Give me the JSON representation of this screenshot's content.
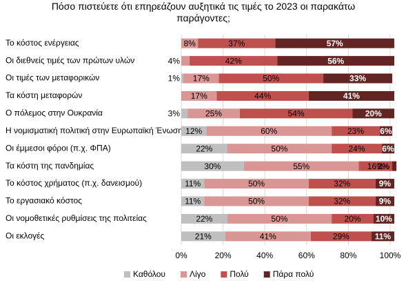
{
  "chart_data": {
    "type": "stacked-bar-horizontal",
    "title": "Πόσο πιστεύετε ότι επηρεάζουν αυξητικά τις τιμές το 2023 οι παρακάτω παράγοντες;",
    "categories": [
      "Το κόστος ενέργειας",
      "Οι διεθνείς τιμές των πρώτων υλών",
      "Οι τιμές των μεταφορικών",
      "Τα κόστη μεταφορών",
      "Ο πόλεμος στην Ουκρανία",
      "Η νομισματική πολιτική στην Ευρωπαϊκή Ένωση",
      "Οι έμμεσοι φόροι (π.χ. ΦΠΑ)",
      "Τα κόστη της πανδημίας",
      "Το κόστος χρήματος (π.χ. δανεισμού)",
      "Το εργασιακό κόστος",
      "Οι νομοθετικές ρυθμίσεις της πολιτείας",
      "Οι εκλογές"
    ],
    "series": [
      {
        "name": "Καθόλου",
        "color": "#bfbfbf",
        "values": [
          null,
          null,
          1,
          null,
          3,
          12,
          22,
          30,
          11,
          11,
          22,
          21
        ],
        "value_labels": [
          null,
          null,
          "1%",
          null,
          "3%",
          "12%",
          "22%",
          "30%",
          "11%",
          "11%",
          "22%",
          "21%"
        ]
      },
      {
        "name": "Λίγο",
        "color": "#d99694",
        "values": [
          8,
          4,
          17,
          17,
          25,
          60,
          50,
          55,
          50,
          50,
          50,
          41
        ],
        "value_labels": [
          "8%",
          "4%",
          "17%",
          "17%",
          "25%",
          "60%",
          "50%",
          "55%",
          "50%",
          "50%",
          "50%",
          "41%"
        ]
      },
      {
        "name": "Πολύ",
        "color": "#c0504d",
        "values": [
          37,
          42,
          50,
          44,
          54,
          23,
          24,
          16,
          32,
          32,
          20,
          29
        ],
        "value_labels": [
          "37%",
          "42%",
          "50%",
          "44%",
          "54%",
          "23%",
          "24%",
          "16%",
          "32%",
          "32%",
          "20%",
          "29%"
        ]
      },
      {
        "name": "Πάρα πολύ",
        "color": "#632523",
        "values": [
          57,
          56,
          33,
          41,
          20,
          6,
          6,
          2,
          9,
          9,
          10,
          11
        ],
        "value_labels": [
          "57%",
          "56%",
          "33%",
          "41%",
          "20%",
          "6%",
          "6%",
          "2%",
          "9%",
          "9%",
          "10%",
          "11%"
        ]
      }
    ],
    "xlim": [
      0,
      100
    ],
    "xticks": [
      {
        "value": 0,
        "label": "0%"
      },
      {
        "value": 20,
        "label": "20%"
      },
      {
        "value": 40,
        "label": "40%"
      },
      {
        "value": 60,
        "label": "60%"
      },
      {
        "value": 80,
        "label": "80%"
      },
      {
        "value": 100,
        "label": "100%"
      }
    ],
    "grid": true
  }
}
